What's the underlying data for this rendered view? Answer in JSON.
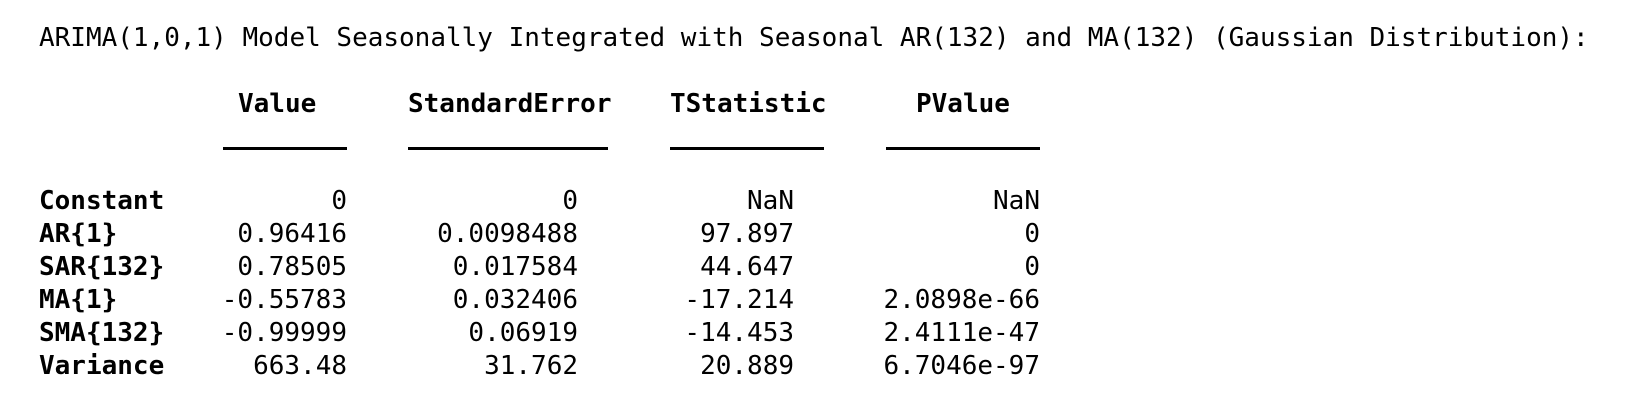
{
  "title": "ARIMA(1,0,1) Model Seasonally Integrated with Seasonal AR(132) and MA(132) (Gaussian Distribution):",
  "columns": [
    "Value",
    "StandardError",
    "TStatistic",
    "PValue"
  ],
  "rows": [
    {
      "name": "Constant",
      "cells": [
        "0",
        "0",
        "NaN",
        "NaN"
      ]
    },
    {
      "name": "AR{1}",
      "cells": [
        "0.96416",
        "0.0098488",
        "97.897",
        "0"
      ]
    },
    {
      "name": "SAR{132}",
      "cells": [
        "0.78505",
        "0.017584",
        "44.647",
        "0"
      ]
    },
    {
      "name": "MA{1}",
      "cells": [
        "-0.55783",
        "0.032406",
        "-17.214",
        "2.0898e-66"
      ]
    },
    {
      "name": "SMA{132}",
      "cells": [
        "-0.99999",
        "0.06919",
        "-14.453",
        "2.4111e-47"
      ]
    },
    {
      "name": "Variance",
      "cells": [
        "663.48",
        "31.762",
        "20.889",
        "6.7046e-97"
      ]
    }
  ]
}
